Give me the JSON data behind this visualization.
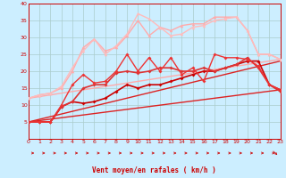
{
  "title": "",
  "xlabel": "Vent moyen/en rafales ( km/h )",
  "background_color": "#cceeff",
  "grid_color": "#aacccc",
  "xlim": [
    0,
    23
  ],
  "ylim": [
    0,
    40
  ],
  "xticks": [
    0,
    1,
    2,
    3,
    4,
    5,
    6,
    7,
    8,
    9,
    10,
    11,
    12,
    13,
    14,
    15,
    16,
    17,
    18,
    19,
    20,
    21,
    22,
    23
  ],
  "yticks": [
    5,
    10,
    15,
    20,
    25,
    30,
    35,
    40
  ],
  "line_straight1": {
    "x": [
      0,
      23
    ],
    "y": [
      5,
      14.5
    ],
    "color": "#dd2222",
    "lw": 1.0
  },
  "line_straight2": {
    "x": [
      0,
      23
    ],
    "y": [
      5,
      23
    ],
    "color": "#dd2222",
    "lw": 1.0
  },
  "line_straight3": {
    "x": [
      0,
      23
    ],
    "y": [
      12,
      23.5
    ],
    "color": "#ffaaaa",
    "lw": 1.0
  },
  "line_dark1": {
    "x": [
      0,
      1,
      2,
      3,
      4,
      5,
      6,
      7,
      8,
      9,
      10,
      11,
      12,
      13,
      14,
      15,
      16,
      17,
      18,
      19,
      20,
      21,
      22,
      23
    ],
    "y": [
      5,
      5,
      5,
      9.5,
      11,
      10.5,
      11,
      12,
      14,
      16,
      15,
      16,
      16,
      17,
      18,
      19,
      20,
      20,
      21,
      22,
      23,
      23,
      16,
      14.5
    ],
    "color": "#cc0000",
    "lw": 1.2,
    "marker": "D",
    "ms": 2
  },
  "line_dark2": {
    "x": [
      0,
      1,
      2,
      3,
      4,
      5,
      6,
      7,
      8,
      9,
      10,
      11,
      12,
      13,
      14,
      15,
      16,
      17,
      18,
      19,
      20,
      21,
      22,
      23
    ],
    "y": [
      5,
      5,
      5,
      9.5,
      11,
      15,
      16,
      16,
      19.5,
      20,
      19.5,
      20,
      21,
      21,
      20,
      20,
      21,
      20,
      21,
      22,
      24,
      21,
      16,
      14
    ],
    "color": "#dd3333",
    "lw": 1.2,
    "marker": "D",
    "ms": 2
  },
  "line_med1": {
    "x": [
      0,
      1,
      2,
      3,
      4,
      5,
      6,
      7,
      8,
      9,
      10,
      11,
      12,
      13,
      14,
      15,
      16,
      17,
      18,
      19,
      20,
      21,
      22,
      23
    ],
    "y": [
      5,
      5,
      5,
      10,
      16,
      19,
      16.5,
      17,
      20,
      25,
      20,
      24,
      20,
      24,
      19,
      21,
      17,
      25,
      24,
      24,
      23.5,
      21.5,
      16,
      14.5
    ],
    "color": "#ee3333",
    "lw": 1.0,
    "marker": "D",
    "ms": 2
  },
  "line_pink1": {
    "x": [
      0,
      1,
      2,
      3,
      4,
      5,
      6,
      7,
      8,
      9,
      10,
      11,
      12,
      13,
      14,
      15,
      16,
      17,
      18,
      19,
      20,
      21,
      22,
      23
    ],
    "y": [
      12,
      13,
      13.5,
      15,
      20,
      27,
      29.5,
      26,
      27,
      30.5,
      35,
      30.5,
      33,
      32,
      33.5,
      34,
      34,
      36,
      36,
      36,
      32,
      25,
      25,
      23.5
    ],
    "color": "#ffaaaa",
    "lw": 1.0,
    "marker": "^",
    "ms": 2.5
  },
  "line_pink2": {
    "x": [
      0,
      1,
      2,
      3,
      4,
      5,
      6,
      7,
      8,
      9,
      10,
      11,
      12,
      13,
      14,
      15,
      16,
      17,
      18,
      19,
      20,
      21,
      22,
      23
    ],
    "y": [
      12,
      13,
      13.5,
      15.5,
      21,
      26,
      29.5,
      25,
      27.5,
      31,
      37,
      35.5,
      33,
      30.5,
      31,
      33,
      33.5,
      35,
      35.5,
      36,
      32,
      25,
      25,
      23.5
    ],
    "color": "#ffbbbb",
    "lw": 1.0,
    "marker": "^",
    "ms": 2.5
  }
}
